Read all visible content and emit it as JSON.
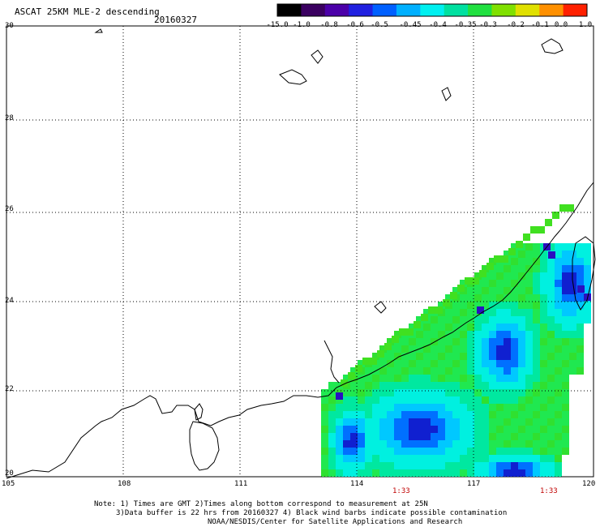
{
  "header": {
    "title": "ASCAT 25KM MLE-2 descending",
    "date": "20160327"
  },
  "colorbar": {
    "labels": [
      "-15.0",
      "-1.0",
      "-0.8",
      "-0.6",
      "-0.5",
      "-0.45",
      "-0.4",
      "-0.35",
      "-0.3",
      "-0.2",
      "-0.1",
      "0.0",
      "1.0"
    ],
    "colors": [
      "#000000",
      "#3a0060",
      "#4b00a8",
      "#2020e0",
      "#0060ff",
      "#00b0ff",
      "#00f0f0",
      "#00e0a0",
      "#20e040",
      "#80e000",
      "#e0e000",
      "#ff9000",
      "#ff2000"
    ]
  },
  "map": {
    "lat_labels": [
      "30",
      "28",
      "26",
      "24",
      "22",
      "20"
    ],
    "lon_labels": [
      "105",
      "108",
      "111",
      "114",
      "117",
      "120"
    ],
    "time_labels": [
      "1:33",
      "1:33"
    ]
  },
  "footer": {
    "line1": "Note: 1) Times are GMT 2)Times along bottom correspond to measurement at 25N",
    "line2": "3)Data buffer is 22 hrs from 20160327 4) Black wind barbs indicate possible contamination",
    "line3": "NOAA/NESDIS/Center for Satellite Applications and Research"
  }
}
